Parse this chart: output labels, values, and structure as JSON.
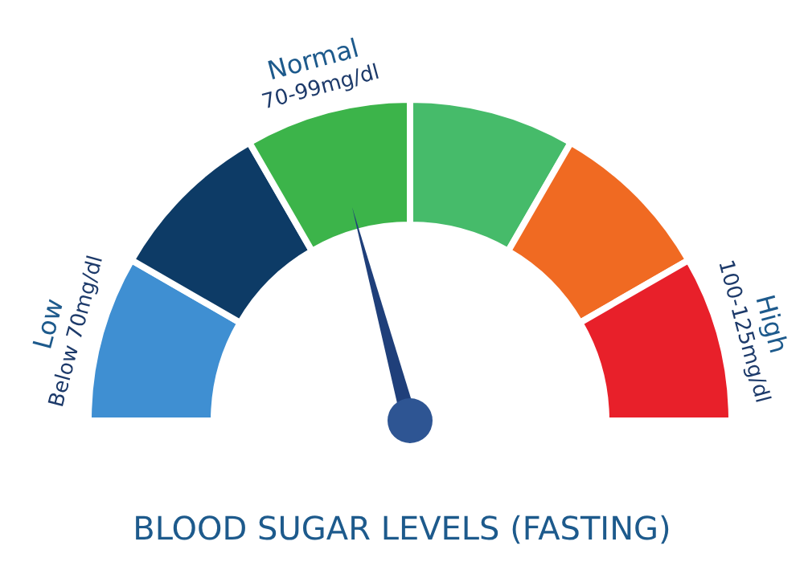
{
  "chart_data": {
    "type": "donut",
    "title": "BLOOD SUGAR LEVELS (FASTING)",
    "categories": [
      "Low",
      null,
      "Normal",
      null,
      null,
      "High"
    ],
    "values": [
      16.67,
      16.67,
      16.66,
      16.67,
      16.66,
      16.67
    ],
    "colors": [
      "#3f8fd2",
      "#0d3b66",
      "#3cb44a",
      "#46bb6a",
      "#f06a22",
      "#e8202a"
    ],
    "annotations": [
      "Below 70mg/dl",
      "70-99mg/dl",
      "100-125mg/dl"
    ],
    "needle": "Normal",
    "legend": false
  }
}
